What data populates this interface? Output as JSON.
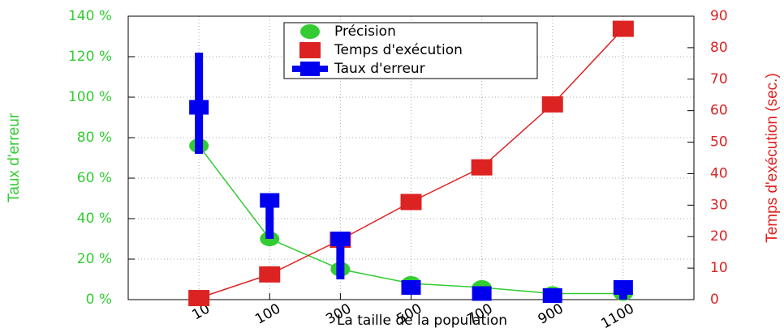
{
  "chart_data": {
    "type": "line",
    "xlabel": "La taille de la population",
    "ylabel": "Taux d'erreur",
    "y2label": "Temps d'exécution (sec.)",
    "categories": [
      "10",
      "100",
      "300",
      "500",
      "700",
      "900",
      "1100"
    ],
    "ylim": [
      0,
      140
    ],
    "yticks": [
      {
        "value": 0,
        "label": "0 %"
      },
      {
        "value": 20,
        "label": "20 %"
      },
      {
        "value": 40,
        "label": "40 %"
      },
      {
        "value": 60,
        "label": "60 %"
      },
      {
        "value": 80,
        "label": "80 %"
      },
      {
        "value": 100,
        "label": "100 %"
      },
      {
        "value": 120,
        "label": "120 %"
      },
      {
        "value": 140,
        "label": "140 %"
      }
    ],
    "y2lim": [
      0,
      90
    ],
    "y2ticks": [
      0,
      10,
      20,
      30,
      40,
      50,
      60,
      70,
      80,
      90
    ],
    "grid": true,
    "legend": "top",
    "series": [
      {
        "name": "Précision",
        "color": "#33cc33",
        "marker": "circle",
        "line": true,
        "values": [
          76,
          30,
          15,
          8,
          6,
          3,
          3
        ]
      },
      {
        "name": "Temps d'exécution",
        "color": "#dd2222",
        "marker": "square",
        "line": true,
        "axis": "y2",
        "values": [
          0.5,
          8,
          19,
          31,
          42,
          62,
          86
        ]
      },
      {
        "name": "Taux d'erreur",
        "color": "#0000ee",
        "marker": "square",
        "line": false,
        "values": [
          95,
          49,
          30,
          6,
          3,
          2,
          6
        ],
        "error_low": [
          72,
          30,
          10,
          4,
          2,
          1,
          0
        ],
        "error_high": [
          122,
          51,
          31,
          8,
          4,
          3,
          8
        ]
      }
    ]
  }
}
